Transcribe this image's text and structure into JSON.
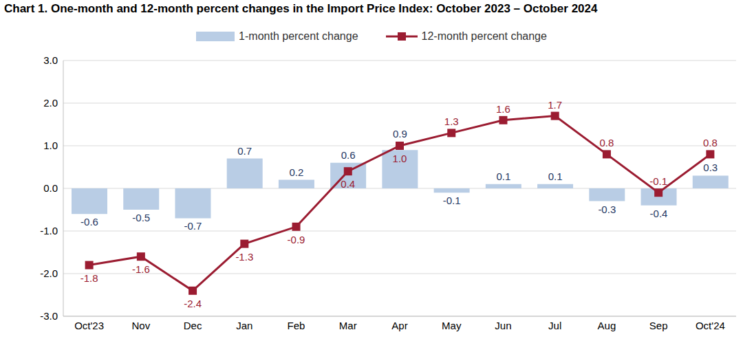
{
  "chart_data": {
    "type": "bar",
    "title": "Chart 1. One-month and 12-month percent changes in the Import Price Index: October 2023 – October 2024",
    "categories": [
      "Oct'23",
      "Nov",
      "Dec",
      "Jan",
      "Feb",
      "Mar",
      "Apr",
      "May",
      "Jun",
      "Jul",
      "Aug",
      "Sep",
      "Oct'24"
    ],
    "series": [
      {
        "name": "1-month percent change",
        "type": "bar",
        "color": "#b9cde5",
        "values": [
          -0.6,
          -0.5,
          -0.7,
          0.7,
          0.2,
          0.6,
          0.9,
          -0.1,
          0.1,
          0.1,
          -0.3,
          -0.4,
          0.3
        ]
      },
      {
        "name": "12-month percent change",
        "type": "line",
        "color": "#9b1c31",
        "marker": "square",
        "values": [
          -1.8,
          -1.6,
          -2.4,
          -1.3,
          -0.9,
          0.4,
          1.0,
          1.3,
          1.6,
          1.7,
          0.8,
          -0.1,
          0.8
        ],
        "value_labels": [
          "-1.8",
          "-1.6",
          "-2.4",
          "-1.3",
          "-0.9",
          "0.4",
          "1.0",
          "1.3",
          "1.6",
          "1.7",
          "0.8",
          "-0.1",
          "0.8"
        ]
      }
    ],
    "ylim": [
      -3,
      3
    ],
    "yticks": [
      {
        "value": -3,
        "label": "-3.0"
      },
      {
        "value": -2,
        "label": "-2.0"
      },
      {
        "value": -1,
        "label": "-1.0"
      },
      {
        "value": 0,
        "label": "0.0"
      },
      {
        "value": 1,
        "label": "1.0"
      },
      {
        "value": 2,
        "label": "2.0"
      },
      {
        "value": 3,
        "label": "3.0"
      }
    ],
    "grid": true,
    "data_labels": true,
    "legend": "top"
  }
}
